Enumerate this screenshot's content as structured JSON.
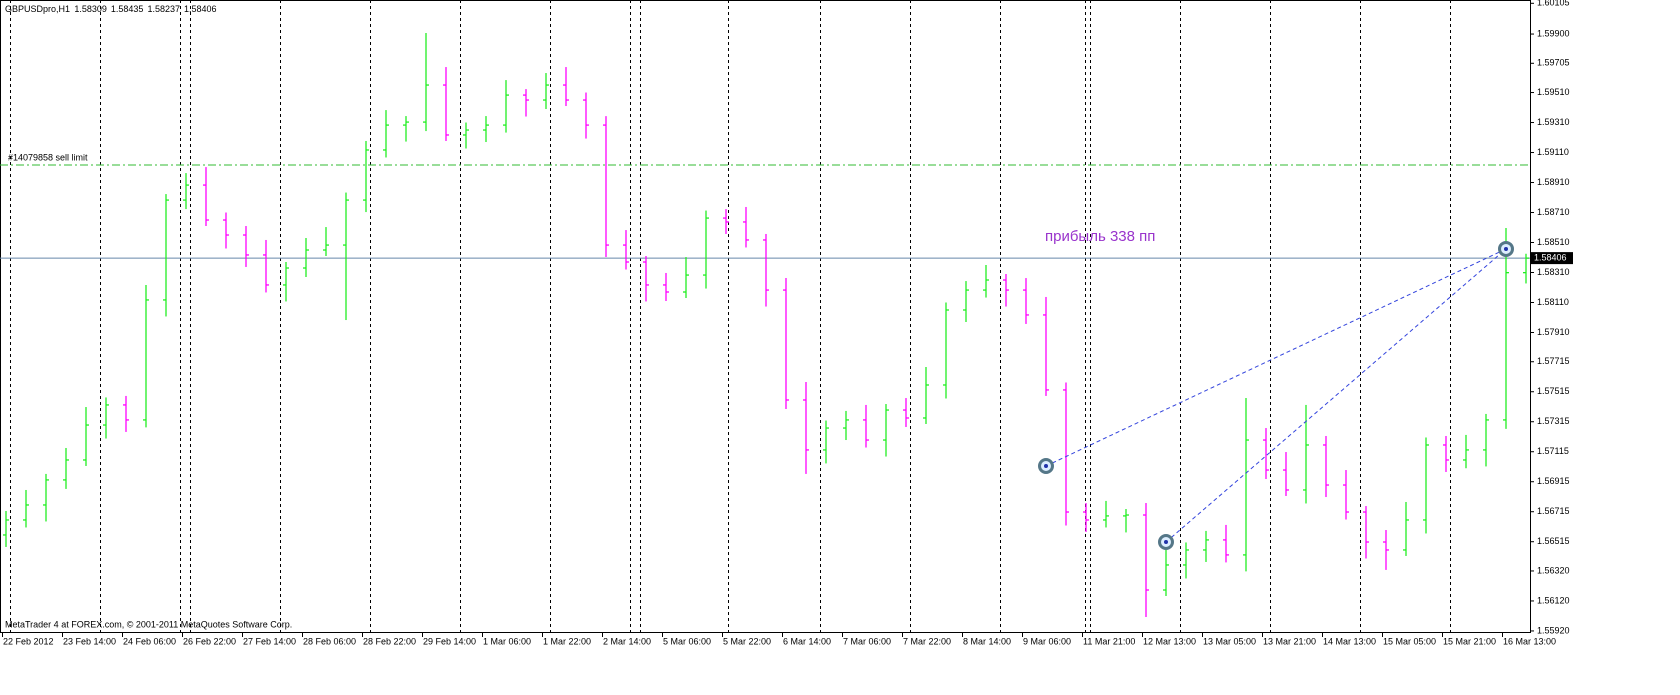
{
  "chart_data": {
    "type": "ohlc",
    "header": "GBPUSDpro,H1",
    "footer": "MetaTrader 4 at FOREX.com, © 2001-2011 MetaQuotes Software Corp.",
    "annotation": "прибыль 338 пп",
    "sell_limit": {
      "label": "#14079858 sell limit",
      "price": 1.59027
    },
    "up_color": "#22ee22",
    "down_color": "#ff00ff",
    "categories": [
      "22 Feb 2012",
      null,
      null,
      "23 Feb 14:00",
      null,
      null,
      "24 Feb 06:00",
      null,
      null,
      "26 Feb 22:00",
      null,
      null,
      "27 Feb 14:00",
      null,
      null,
      "28 Feb 06:00",
      null,
      null,
      "28 Feb 22:00",
      null,
      null,
      "29 Feb 14:00",
      null,
      null,
      "1 Mar 06:00",
      null,
      null,
      "1 Mar 22:00",
      null,
      null,
      "2 Mar 14:00",
      null,
      null,
      "5 Mar 06:00",
      null,
      null,
      "5 Mar 22:00",
      null,
      null,
      "6 Mar 14:00",
      null,
      null,
      "7 Mar 06:00",
      null,
      null,
      "7 Mar 22:00",
      null,
      null,
      "8 Mar 14:00",
      null,
      null,
      "9 Mar 06:00",
      null,
      null,
      "11 Mar 21:00",
      null,
      null,
      "12 Mar 13:00",
      null,
      null,
      "13 Mar 05:00",
      null,
      null,
      "13 Mar 21:00",
      null,
      null,
      "14 Mar 13:00",
      null,
      null,
      "15 Mar 05:00",
      null,
      null,
      "15 Mar 21:00",
      null,
      null,
      "16 Mar 13:00",
      null
    ],
    "open": [
      1.5656,
      1.5666,
      1.5676,
      1.56927,
      1.5706,
      1.57293,
      1.57427,
      1.57327,
      1.58127,
      1.58793,
      1.58893,
      1.5866,
      1.5856,
      1.58427,
      1.58227,
      1.5834,
      1.5846,
      1.58493,
      1.58793,
      1.59127,
      1.59293,
      1.59313,
      1.5956,
      1.59227,
      1.5926,
      1.59293,
      1.59493,
      1.5946,
      1.5956,
      1.5946,
      1.59293,
      1.58493,
      1.5838,
      1.58227,
      1.5818,
      1.58293,
      1.58673,
      1.58647,
      1.58527,
      1.58193,
      1.5746,
      1.57127,
      1.57273,
      1.57327,
      1.57193,
      1.57393,
      1.5734,
      1.5756,
      1.5806,
      1.58193,
      1.5826,
      1.58193,
      1.58027,
      1.57527,
      1.56713,
      1.5666,
      1.56687,
      1.56693,
      1.56193,
      1.5636,
      1.5646,
      1.56527,
      1.56427,
      1.57193,
      1.56993,
      1.5686,
      1.5716,
      1.56893,
      1.56713,
      1.56513,
      1.5646,
      1.5666,
      1.5716,
      1.5706,
      1.57127,
      1.57327,
      1.58309
    ],
    "high": [
      1.5672,
      1.5686,
      1.56967,
      1.5714,
      1.57413,
      1.57477,
      1.57487,
      1.58227,
      1.58833,
      1.58973,
      1.59013,
      1.5871,
      1.5862,
      1.58527,
      1.5838,
      1.5854,
      1.58613,
      1.58843,
      1.59187,
      1.59393,
      1.59353,
      1.59907,
      1.5968,
      1.5931,
      1.59353,
      1.59593,
      1.59533,
      1.5964,
      1.5968,
      1.5951,
      1.59353,
      1.58593,
      1.5842,
      1.58307,
      1.58413,
      1.58723,
      1.58733,
      1.58747,
      1.58567,
      1.58273,
      1.5758,
      1.57323,
      1.57387,
      1.57427,
      1.57433,
      1.57473,
      1.5768,
      1.5811,
      1.58253,
      1.5836,
      1.583,
      1.58273,
      1.58147,
      1.57577,
      1.56773,
      1.56787,
      1.56733,
      1.56773,
      1.5648,
      1.5651,
      1.56587,
      1.56627,
      1.57473,
      1.57273,
      1.57113,
      1.57427,
      1.5722,
      1.56993,
      1.56753,
      1.56593,
      1.5678,
      1.5721,
      1.5722,
      1.57227,
      1.57367,
      1.58607,
      1.58435
    ],
    "low": [
      1.5648,
      1.5661,
      1.5665,
      1.56867,
      1.5702,
      1.57203,
      1.57247,
      1.57277,
      1.58017,
      1.58733,
      1.5862,
      1.5847,
      1.58347,
      1.58177,
      1.58117,
      1.5828,
      1.5842,
      1.57993,
      1.58713,
      1.59077,
      1.59183,
      1.59253,
      1.59187,
      1.59137,
      1.5918,
      1.59243,
      1.5935,
      1.594,
      1.5942,
      1.59203,
      1.58413,
      1.5833,
      1.58117,
      1.5812,
      1.5814,
      1.58203,
      1.58567,
      1.58477,
      1.58083,
      1.574,
      1.56967,
      1.57037,
      1.57193,
      1.57143,
      1.57083,
      1.5728,
      1.573,
      1.5747,
      1.5798,
      1.58143,
      1.58083,
      1.57967,
      1.57487,
      1.56623,
      1.5658,
      1.5661,
      1.56577,
      1.56013,
      1.56153,
      1.5627,
      1.5638,
      1.56377,
      1.56317,
      1.56933,
      1.5682,
      1.5677,
      1.56813,
      1.56663,
      1.56403,
      1.56327,
      1.5642,
      1.5657,
      1.5698,
      1.57005,
      1.57017,
      1.57267,
      1.58237
    ],
    "close": [
      1.5666,
      1.5676,
      1.56927,
      1.5706,
      1.57293,
      1.57427,
      1.57327,
      1.58127,
      1.58793,
      1.58893,
      1.5866,
      1.5856,
      1.58427,
      1.58227,
      1.5834,
      1.5846,
      1.58493,
      1.58793,
      1.59127,
      1.59293,
      1.59313,
      1.5956,
      1.59227,
      1.5926,
      1.59293,
      1.59493,
      1.5946,
      1.5956,
      1.5946,
      1.59293,
      1.58493,
      1.5838,
      1.58227,
      1.5818,
      1.58293,
      1.58673,
      1.58647,
      1.58527,
      1.58193,
      1.5746,
      1.57127,
      1.57273,
      1.57327,
      1.57193,
      1.57393,
      1.5734,
      1.5756,
      1.5806,
      1.58193,
      1.5826,
      1.58193,
      1.58027,
      1.57527,
      1.56713,
      1.5666,
      1.56687,
      1.56693,
      1.56193,
      1.5636,
      1.5646,
      1.56527,
      1.56427,
      1.57193,
      1.56993,
      1.5686,
      1.5716,
      1.56893,
      1.56713,
      1.56513,
      1.5646,
      1.5666,
      1.5716,
      1.5706,
      1.57127,
      1.57327,
      1.58309,
      1.58406
    ],
    "markers": [
      {
        "bar": 52,
        "price": 1.5702
      },
      {
        "bar": 58,
        "price": 1.56513
      },
      {
        "bar": 75,
        "price": 1.58467
      }
    ],
    "ylim": [
      1.55913,
      1.60127
    ],
    "yticks": [
      {
        "value": 1.5592,
        "label": "1.55920"
      },
      {
        "value": 1.5612,
        "label": "1.56120"
      },
      {
        "value": 1.5632,
        "label": "1.56320"
      },
      1.56515,
      1.56715,
      1.56915,
      1.57115,
      1.57315,
      1.57515,
      1.57715,
      {
        "value": 1.5791,
        "label": "1.57910"
      },
      {
        "value": 1.5811,
        "label": "1.58110"
      },
      {
        "value": 1.5831,
        "label": "1.58310"
      },
      {
        "value": 1.5851,
        "label": "1.58510"
      },
      {
        "value": 1.5871,
        "label": "1.58710"
      },
      {
        "value": 1.5891,
        "label": "1.58910"
      },
      {
        "value": 1.5911,
        "label": "1.59110"
      },
      {
        "value": 1.5931,
        "label": "1.59310"
      },
      {
        "value": 1.5951,
        "label": "1.59510"
      },
      1.59705,
      {
        "value": 1.599,
        "label": "1.59900"
      },
      1.60105
    ]
  }
}
